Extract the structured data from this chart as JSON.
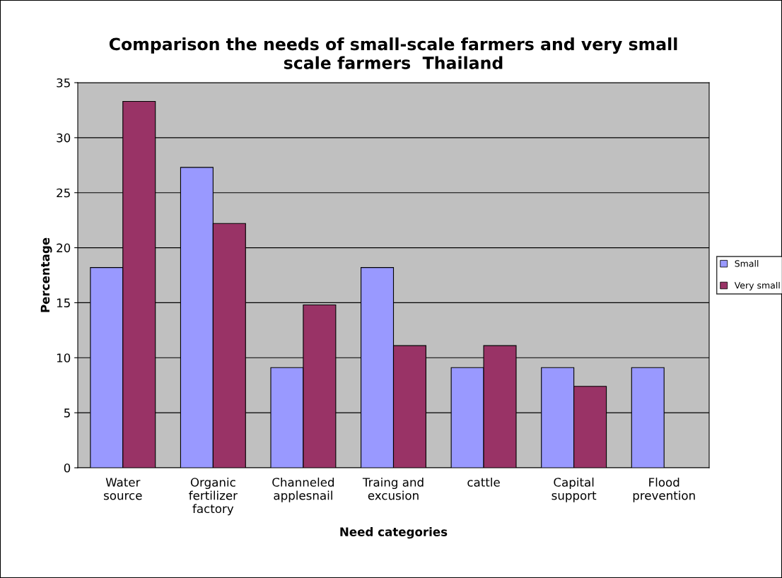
{
  "chart_data": {
    "type": "bar",
    "title": "Comparison the needs of small-scale farmers and very small\nscale farmers  Thailand",
    "xlabel": "Need categories",
    "ylabel": "Percentage",
    "categories": [
      "Water\nsource",
      "Organic\nfertilizer\nfactory",
      "Channeled\napplesnail",
      "Traing and\nexcusion",
      "cattle",
      "Capital\nsupport",
      "Flood\nprevention"
    ],
    "series": [
      {
        "name": "Small",
        "color": "#9999ff",
        "values": [
          18.2,
          27.3,
          9.1,
          18.2,
          9.1,
          9.1,
          9.1
        ]
      },
      {
        "name": "Very small",
        "color": "#993366",
        "values": [
          33.3,
          22.2,
          14.8,
          11.1,
          11.1,
          7.4,
          null
        ]
      }
    ],
    "ylim": [
      0,
      35
    ],
    "yticks": [
      0,
      5,
      10,
      15,
      20,
      25,
      30,
      35
    ],
    "grid": "y",
    "legend": "right"
  }
}
